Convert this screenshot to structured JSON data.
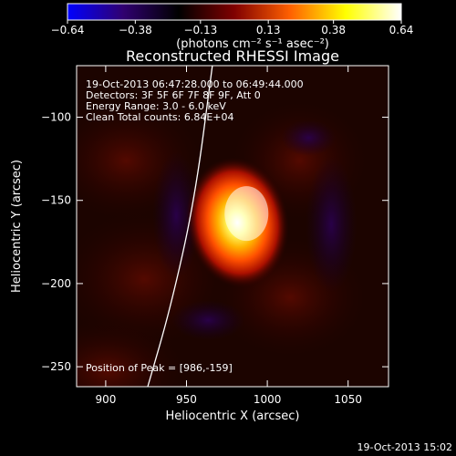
{
  "chart_data": {
    "type": "heatmap",
    "title": "Reconstructed RHESSI Image",
    "xlabel": "Heliocentric X (arcsec)",
    "ylabel": "Heliocentric Y (arcsec)",
    "xlim": [
      882,
      1075
    ],
    "ylim": [
      -262,
      -69
    ],
    "x_ticks": [
      900,
      950,
      1000,
      1050
    ],
    "y_ticks": [
      -100,
      -150,
      -200,
      -250
    ],
    "colorbar": {
      "range": [
        -0.64,
        0.64
      ],
      "ticks": [
        "-0.64",
        "-0.38",
        "-0.13",
        "0.13",
        "0.38",
        "0.64"
      ],
      "unit_label": "(photons cm⁻² s⁻¹ asec⁻²)",
      "colors": [
        "#0000ff",
        "#300070",
        "#000000",
        "#800000",
        "#ff6000",
        "#ffff00",
        "#ffffff"
      ]
    },
    "peak": {
      "x": 986,
      "y": -159,
      "value": 0.64
    },
    "info_lines": [
      "19-Oct-2013 06:47:28.000 to 06:49:44.000",
      "Detectors: 3F 5F 6F 7F 8F 9F, Att 0",
      "Energy Range: 3.0 - 6.0 keV",
      "Clean    Total counts: 6.84E+04"
    ],
    "peak_text": "Position of Peak = [986,-159]",
    "limb": {
      "points": [
        {
          "x": 966,
          "y": -69
        },
        {
          "x": 955,
          "y": -150
        },
        {
          "x": 940,
          "y": -215
        },
        {
          "x": 926,
          "y": -262
        }
      ]
    }
  },
  "footer": {
    "timestamp": "19-Oct-2013 15:02"
  }
}
